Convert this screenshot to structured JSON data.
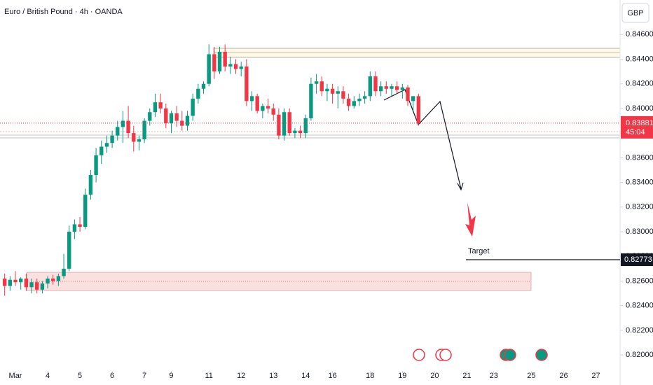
{
  "chart_data": {
    "type": "candlestick",
    "title": "Euro / British Pound · 4h · OANDA",
    "currency": "GBP",
    "x": [
      0,
      1,
      2,
      3,
      4,
      5,
      6,
      7,
      8,
      9,
      10,
      11,
      12,
      13,
      14,
      15,
      16,
      17,
      18,
      19,
      20,
      21,
      22,
      23,
      24,
      25,
      26,
      27,
      28,
      29,
      30,
      31,
      32,
      33,
      34,
      35,
      36,
      37,
      38,
      39,
      40,
      41,
      42,
      43,
      44,
      45,
      46,
      47,
      48,
      49,
      50,
      51,
      52,
      53,
      54,
      55,
      56,
      57,
      58,
      59,
      60,
      61,
      62,
      63,
      64,
      65,
      66,
      67,
      68,
      69,
      70,
      71,
      72,
      73,
      74,
      75,
      76,
      77
    ],
    "open": [
      0.8262,
      0.8256,
      0.8261,
      0.8259,
      0.8262,
      0.8255,
      0.8259,
      0.8253,
      0.8258,
      0.8262,
      0.826,
      0.8264,
      0.827,
      0.83,
      0.8306,
      0.8304,
      0.833,
      0.8346,
      0.8362,
      0.8369,
      0.8372,
      0.8378,
      0.8385,
      0.839,
      0.838,
      0.8373,
      0.8375,
      0.839,
      0.8397,
      0.8405,
      0.84,
      0.8388,
      0.8396,
      0.839,
      0.8386,
      0.8394,
      0.8408,
      0.8416,
      0.842,
      0.8444,
      0.843,
      0.8446,
      0.8434,
      0.8436,
      0.8432,
      0.8434,
      0.8406,
      0.841,
      0.8398,
      0.8402,
      0.84,
      0.8395,
      0.8378,
      0.8397,
      0.838,
      0.8382,
      0.838,
      0.8392,
      0.842,
      0.8422,
      0.8414,
      0.8416,
      0.8412,
      0.8414,
      0.8408,
      0.8402,
      0.8406,
      0.8408,
      0.841,
      0.8426,
      0.8414,
      0.8418,
      0.8416,
      0.8418,
      0.8415,
      0.8417,
      0.8406,
      0.841
    ],
    "high": [
      0.8266,
      0.8264,
      0.8268,
      0.8263,
      0.8266,
      0.8262,
      0.8262,
      0.826,
      0.8264,
      0.8265,
      0.8266,
      0.8282,
      0.8305,
      0.831,
      0.8312,
      0.8335,
      0.835,
      0.8368,
      0.8374,
      0.8378,
      0.8382,
      0.839,
      0.8398,
      0.8402,
      0.8386,
      0.8378,
      0.8392,
      0.84,
      0.8412,
      0.8412,
      0.8404,
      0.8398,
      0.8402,
      0.8398,
      0.8398,
      0.8412,
      0.842,
      0.8422,
      0.8452,
      0.845,
      0.845,
      0.8452,
      0.8442,
      0.844,
      0.8438,
      0.844,
      0.8414,
      0.8412,
      0.8404,
      0.8408,
      0.8404,
      0.84,
      0.84,
      0.84,
      0.8384,
      0.8386,
      0.8395,
      0.8425,
      0.8428,
      0.8426,
      0.842,
      0.842,
      0.8418,
      0.8418,
      0.8412,
      0.841,
      0.8412,
      0.8414,
      0.843,
      0.843,
      0.8422,
      0.8422,
      0.842,
      0.8422,
      0.842,
      0.8419,
      0.841,
      0.8412
    ],
    "low": [
      0.8248,
      0.8252,
      0.8256,
      0.8253,
      0.8252,
      0.825,
      0.825,
      0.825,
      0.8254,
      0.8257,
      0.8256,
      0.8262,
      0.8268,
      0.8294,
      0.83,
      0.8302,
      0.8326,
      0.834,
      0.8355,
      0.8364,
      0.8368,
      0.8374,
      0.8372,
      0.8376,
      0.8365,
      0.8366,
      0.8372,
      0.8386,
      0.8393,
      0.8396,
      0.8384,
      0.838,
      0.8385,
      0.8382,
      0.8382,
      0.839,
      0.8404,
      0.8412,
      0.8418,
      0.8424,
      0.8428,
      0.843,
      0.8428,
      0.8428,
      0.8426,
      0.8402,
      0.8398,
      0.8396,
      0.8392,
      0.8396,
      0.839,
      0.8375,
      0.8374,
      0.8378,
      0.8376,
      0.8376,
      0.8376,
      0.839,
      0.8412,
      0.841,
      0.8406,
      0.8404,
      0.84,
      0.8404,
      0.8398,
      0.84,
      0.8402,
      0.8404,
      0.8406,
      0.841,
      0.841,
      0.8412,
      0.841,
      0.8412,
      0.8408,
      0.8402,
      0.8398,
      0.8386
    ],
    "close": [
      0.8256,
      0.8261,
      0.8259,
      0.8262,
      0.8255,
      0.8259,
      0.8253,
      0.8258,
      0.8262,
      0.826,
      0.8264,
      0.827,
      0.83,
      0.8306,
      0.8304,
      0.833,
      0.8346,
      0.8362,
      0.8369,
      0.8372,
      0.8378,
      0.8385,
      0.839,
      0.838,
      0.8373,
      0.8375,
      0.839,
      0.8397,
      0.8405,
      0.84,
      0.8388,
      0.8396,
      0.839,
      0.8386,
      0.8394,
      0.8408,
      0.8416,
      0.842,
      0.8444,
      0.843,
      0.8446,
      0.8434,
      0.8436,
      0.8432,
      0.8434,
      0.8406,
      0.841,
      0.8398,
      0.8402,
      0.84,
      0.8395,
      0.8378,
      0.8397,
      0.838,
      0.8382,
      0.838,
      0.8392,
      0.842,
      0.8422,
      0.8414,
      0.8416,
      0.8412,
      0.8414,
      0.8408,
      0.8402,
      0.8406,
      0.8408,
      0.841,
      0.8426,
      0.8414,
      0.8418,
      0.8416,
      0.8418,
      0.8415,
      0.8417,
      0.8406,
      0.841,
      0.83881
    ],
    "up_color": "#089981",
    "down_color": "#f23645",
    "xlim": [
      -0.87,
      114.5
    ],
    "xticks": [
      {
        "value": 2,
        "label": "Mar"
      },
      {
        "value": 8,
        "label": "4"
      },
      {
        "value": 14,
        "label": "5"
      },
      {
        "value": 20,
        "label": "6"
      },
      {
        "value": 26,
        "label": "7"
      },
      {
        "value": 31,
        "label": "9"
      },
      {
        "value": 38,
        "label": "11"
      },
      {
        "value": 44,
        "label": "12"
      },
      {
        "value": 50,
        "label": "13"
      },
      {
        "value": 56,
        "label": "14"
      },
      {
        "value": 61,
        "label": "16"
      },
      {
        "value": 68,
        "label": "18"
      },
      {
        "value": 74,
        "label": "19"
      },
      {
        "value": 80,
        "label": "20"
      },
      {
        "value": 86,
        "label": "21"
      },
      {
        "value": 91,
        "label": "23"
      },
      {
        "value": 98,
        "label": "25"
      },
      {
        "value": 104,
        "label": "26"
      },
      {
        "value": 110,
        "label": "27"
      }
    ],
    "ylim": [
      0.8187,
      0.8488
    ],
    "yticks": [
      {
        "value": 0.82,
        "label": "0.82000"
      },
      {
        "value": 0.822,
        "label": "0.82200"
      },
      {
        "value": 0.824,
        "label": "0.82400"
      },
      {
        "value": 0.826,
        "label": "0.82600"
      },
      {
        "value": 0.828,
        "label": "0.82800"
      },
      {
        "value": 0.83,
        "label": "0.83000"
      },
      {
        "value": 0.832,
        "label": "0.83200"
      },
      {
        "value": 0.834,
        "label": "0.83400"
      },
      {
        "value": 0.836,
        "label": "0.83600"
      },
      {
        "value": 0.838,
        "label": "0.83800"
      },
      {
        "value": 0.84,
        "label": "0.84000"
      },
      {
        "value": 0.842,
        "label": "0.84200"
      },
      {
        "value": 0.844,
        "label": "0.84400"
      },
      {
        "value": 0.846,
        "label": "0.84600"
      }
    ],
    "countdown": "45:04",
    "target": {
      "text": "Target",
      "value": 0.82773
    }
  }
}
